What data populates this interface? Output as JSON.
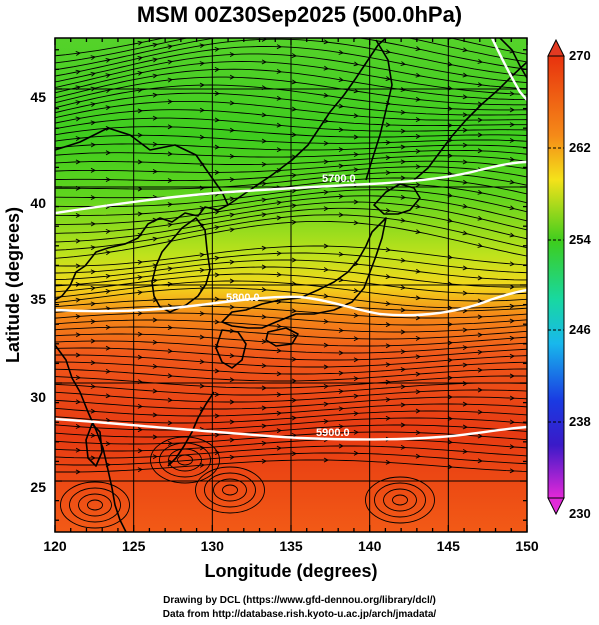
{
  "title": "MSM 00Z30Sep2025 (500.0hPa)",
  "xlabel": "Longitude (degrees)",
  "ylabel": "Latitude  (degrees)",
  "credits": {
    "line1": "Drawing by DCL (https://www.gfd-dennou.org/library/dcl/)",
    "line2": "Data from http://database.rish.kyoto-u.ac.jp/arch/jmadata/"
  },
  "map": {
    "lon_range": [
      120,
      150
    ],
    "lat_range": [
      22.4,
      47.6
    ],
    "lon_ticks": [
      "120",
      "125",
      "130",
      "135",
      "140",
      "145",
      "150"
    ],
    "lat_ticks": [
      "25",
      "30",
      "35",
      "40",
      "45"
    ],
    "contour_labels": [
      "5700.0",
      "5800.0",
      "5900.0"
    ]
  },
  "colorbar": {
    "range": [
      230,
      270
    ],
    "tick_labels": [
      "270",
      "262",
      "254",
      "246",
      "238",
      "230"
    ]
  },
  "colors": {
    "warm": "#e23a10",
    "cool": "#3ccc18",
    "contour": "#ffffff",
    "streamline": "#000000"
  }
}
